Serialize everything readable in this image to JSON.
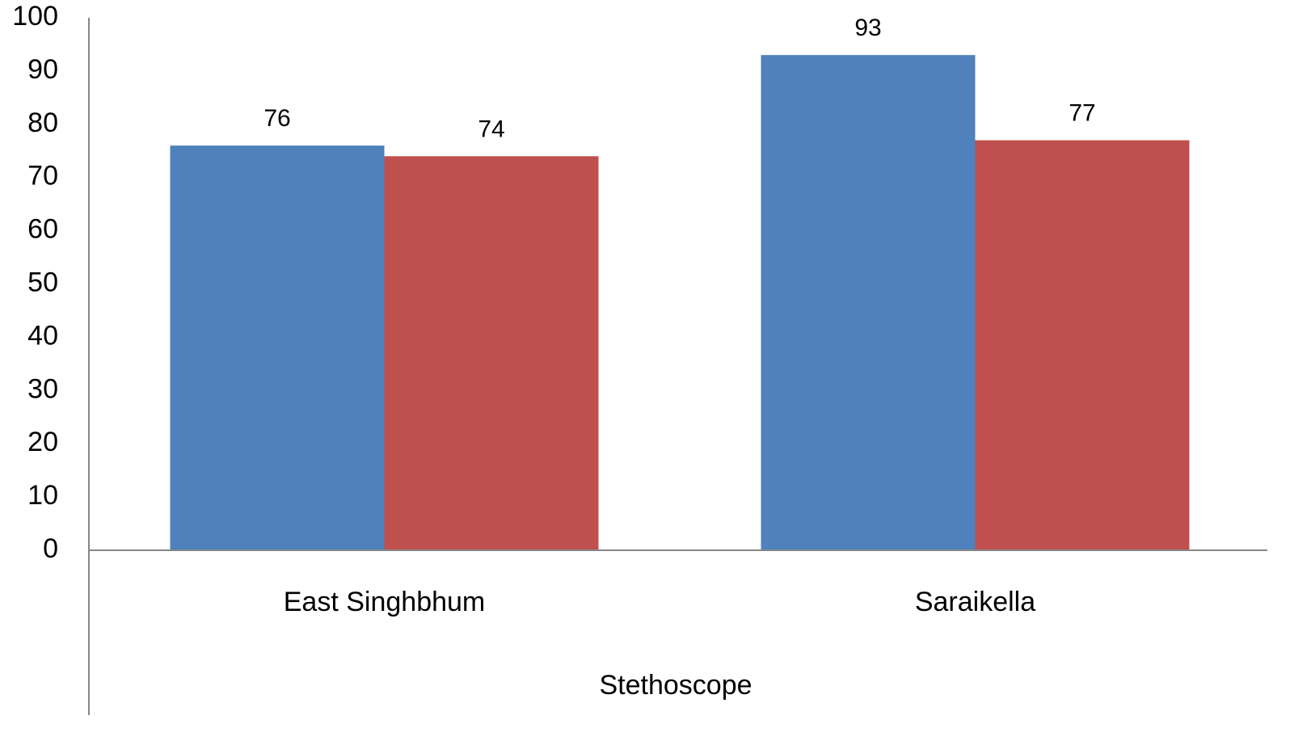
{
  "chart_data": {
    "type": "bar",
    "categories": [
      "East Singhbhum",
      "Saraikella"
    ],
    "series": [
      {
        "color": "#4f81bd",
        "values": [
          76,
          93
        ]
      },
      {
        "color": "#c0504d",
        "values": [
          74,
          77
        ]
      }
    ],
    "xlabel": "Stethoscope",
    "ylim": [
      0,
      100
    ],
    "yticks": [
      0,
      10,
      20,
      30,
      40,
      50,
      60,
      70,
      80,
      90,
      100
    ],
    "grid": false,
    "data_labels": true
  }
}
